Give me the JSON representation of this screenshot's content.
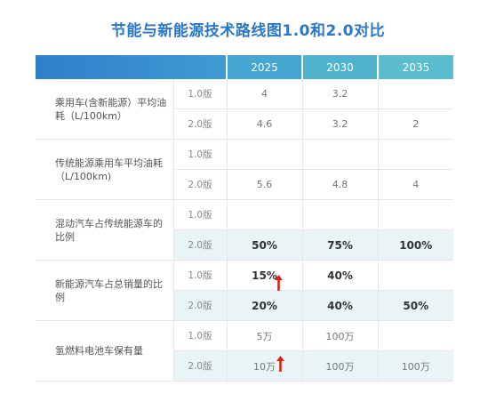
{
  "title": "节能与新能源技术路线图1.0和2.0对比",
  "years": [
    "2025",
    "2030",
    "2035"
  ],
  "rows": [
    {
      "category": "乘用车(含新能源）平均油耗（L/100km）",
      "v1": {
        "version": "1.0版",
        "values": [
          "4",
          "3.2",
          ""
        ]
      },
      "v2": {
        "version": "2.0版",
        "values": [
          "4.6",
          "3.2",
          "2"
        ]
      }
    },
    {
      "category": "传统能源乘用车平均油耗（L/100km)",
      "v1": {
        "version": "1.0版",
        "values": [
          "",
          "",
          ""
        ]
      },
      "v2": {
        "version": "2.0版",
        "values": [
          "5.6",
          "4.8",
          "4"
        ]
      }
    },
    {
      "category": "混动汽车占传统能源车的比例",
      "v1": {
        "version": "1.0版",
        "values": [
          "",
          "",
          ""
        ]
      },
      "v2": {
        "version": "2.0版",
        "values": [
          "50%",
          "75%",
          "100%"
        ]
      }
    },
    {
      "category": "新能源汽车占总销量的比例",
      "v1": {
        "version": "1.0版",
        "values": [
          "15%",
          "40%",
          ""
        ]
      },
      "v2": {
        "version": "2.0版",
        "values": [
          "20%",
          "40%",
          "50%"
        ]
      }
    },
    {
      "category": "氢燃料电池车保有量",
      "v1": {
        "version": "1.0版",
        "values": [
          "5万",
          "100万",
          ""
        ]
      },
      "v2": {
        "version": "2.0版",
        "values": [
          "10万",
          "100万",
          "100万"
        ]
      }
    }
  ],
  "arrow_color": "#e0201b"
}
